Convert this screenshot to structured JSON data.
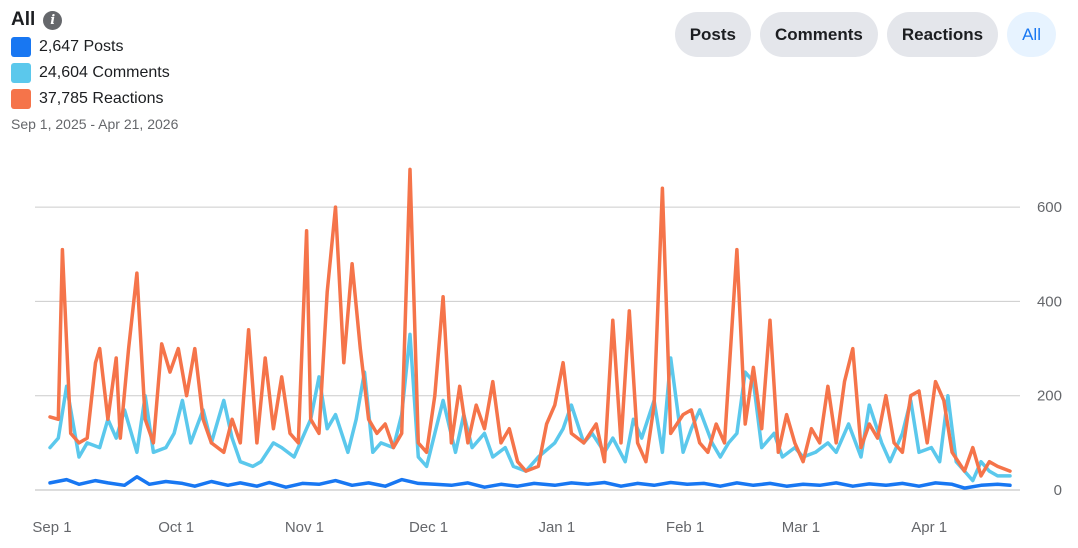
{
  "header": {
    "title": "All",
    "date_range": "Sep 1, 2025 - Apr 21, 2026"
  },
  "legend": [
    {
      "label": "2,647 Posts",
      "color": "#1877f2"
    },
    {
      "label": "24,604 Comments",
      "color": "#5bc8ec"
    },
    {
      "label": "37,785 Reactions",
      "color": "#f5744a"
    }
  ],
  "filters": [
    {
      "label": "Posts",
      "active": false
    },
    {
      "label": "Comments",
      "active": false
    },
    {
      "label": "Reactions",
      "active": false
    },
    {
      "label": "All",
      "active": true
    }
  ],
  "colors": {
    "posts": "#1877f2",
    "comments": "#5bc8ec",
    "reactions": "#f5744a",
    "grid": "#cccccc"
  },
  "chart_data": {
    "type": "line",
    "x_start": "2025-09-01",
    "x_end": "2026-04-21",
    "x_tick_labels": [
      "Sep 1",
      "Oct 1",
      "Nov 1",
      "Dec 1",
      "Jan 1",
      "Feb 1",
      "Mar 1",
      "Apr 1"
    ],
    "y_ticks": [
      0,
      200,
      400,
      600
    ],
    "ylim": [
      0,
      700
    ],
    "y_axis_side": "right",
    "grid": true,
    "series": [
      {
        "name": "Posts",
        "color": "#1877f2",
        "points": [
          [
            "2025-09-01",
            15
          ],
          [
            "2025-09-05",
            22
          ],
          [
            "2025-09-08",
            12
          ],
          [
            "2025-09-12",
            20
          ],
          [
            "2025-09-15",
            15
          ],
          [
            "2025-09-19",
            10
          ],
          [
            "2025-09-22",
            28
          ],
          [
            "2025-09-25",
            12
          ],
          [
            "2025-09-29",
            18
          ],
          [
            "2025-10-03",
            14
          ],
          [
            "2025-10-06",
            8
          ],
          [
            "2025-10-10",
            18
          ],
          [
            "2025-10-14",
            10
          ],
          [
            "2025-10-17",
            15
          ],
          [
            "2025-10-21",
            8
          ],
          [
            "2025-10-24",
            16
          ],
          [
            "2025-10-28",
            6
          ],
          [
            "2025-11-01",
            14
          ],
          [
            "2025-11-05",
            12
          ],
          [
            "2025-11-09",
            20
          ],
          [
            "2025-11-13",
            10
          ],
          [
            "2025-11-17",
            15
          ],
          [
            "2025-11-21",
            8
          ],
          [
            "2025-11-25",
            22
          ],
          [
            "2025-11-29",
            14
          ],
          [
            "2025-12-03",
            12
          ],
          [
            "2025-12-07",
            10
          ],
          [
            "2025-12-11",
            15
          ],
          [
            "2025-12-15",
            6
          ],
          [
            "2025-12-19",
            12
          ],
          [
            "2025-12-23",
            8
          ],
          [
            "2025-12-27",
            14
          ],
          [
            "2026-01-01",
            10
          ],
          [
            "2026-01-05",
            15
          ],
          [
            "2026-01-09",
            12
          ],
          [
            "2026-01-13",
            16
          ],
          [
            "2026-01-17",
            8
          ],
          [
            "2026-01-21",
            14
          ],
          [
            "2026-01-25",
            10
          ],
          [
            "2026-01-29",
            16
          ],
          [
            "2026-02-02",
            12
          ],
          [
            "2026-02-06",
            14
          ],
          [
            "2026-02-10",
            8
          ],
          [
            "2026-02-14",
            15
          ],
          [
            "2026-02-18",
            10
          ],
          [
            "2026-02-22",
            14
          ],
          [
            "2026-02-26",
            8
          ],
          [
            "2026-03-02",
            12
          ],
          [
            "2026-03-06",
            10
          ],
          [
            "2026-03-10",
            15
          ],
          [
            "2026-03-14",
            8
          ],
          [
            "2026-03-18",
            13
          ],
          [
            "2026-03-22",
            10
          ],
          [
            "2026-03-26",
            14
          ],
          [
            "2026-03-30",
            8
          ],
          [
            "2026-04-03",
            15
          ],
          [
            "2026-04-07",
            12
          ],
          [
            "2026-04-10",
            4
          ],
          [
            "2026-04-14",
            10
          ],
          [
            "2026-04-18",
            12
          ],
          [
            "2026-04-21",
            10
          ]
        ]
      },
      {
        "name": "Comments",
        "color": "#5bc8ec",
        "points": [
          [
            "2025-09-01",
            90
          ],
          [
            "2025-09-03",
            110
          ],
          [
            "2025-09-05",
            220
          ],
          [
            "2025-09-08",
            70
          ],
          [
            "2025-09-10",
            100
          ],
          [
            "2025-09-13",
            90
          ],
          [
            "2025-09-15",
            150
          ],
          [
            "2025-09-17",
            110
          ],
          [
            "2025-09-19",
            170
          ],
          [
            "2025-09-22",
            80
          ],
          [
            "2025-09-24",
            200
          ],
          [
            "2025-09-26",
            80
          ],
          [
            "2025-09-29",
            90
          ],
          [
            "2025-10-01",
            120
          ],
          [
            "2025-10-03",
            190
          ],
          [
            "2025-10-05",
            100
          ],
          [
            "2025-10-08",
            170
          ],
          [
            "2025-10-10",
            100
          ],
          [
            "2025-10-13",
            190
          ],
          [
            "2025-10-15",
            110
          ],
          [
            "2025-10-17",
            60
          ],
          [
            "2025-10-20",
            50
          ],
          [
            "2025-10-22",
            60
          ],
          [
            "2025-10-25",
            100
          ],
          [
            "2025-10-27",
            90
          ],
          [
            "2025-10-30",
            70
          ],
          [
            "2025-11-01",
            110
          ],
          [
            "2025-11-03",
            150
          ],
          [
            "2025-11-05",
            240
          ],
          [
            "2025-11-07",
            130
          ],
          [
            "2025-11-09",
            160
          ],
          [
            "2025-11-12",
            80
          ],
          [
            "2025-11-14",
            150
          ],
          [
            "2025-11-16",
            250
          ],
          [
            "2025-11-18",
            80
          ],
          [
            "2025-11-20",
            100
          ],
          [
            "2025-11-23",
            90
          ],
          [
            "2025-11-25",
            160
          ],
          [
            "2025-11-27",
            330
          ],
          [
            "2025-11-29",
            70
          ],
          [
            "2025-12-01",
            50
          ],
          [
            "2025-12-03",
            120
          ],
          [
            "2025-12-05",
            190
          ],
          [
            "2025-12-08",
            80
          ],
          [
            "2025-12-10",
            160
          ],
          [
            "2025-12-12",
            90
          ],
          [
            "2025-12-15",
            120
          ],
          [
            "2025-12-17",
            70
          ],
          [
            "2025-12-20",
            90
          ],
          [
            "2025-12-22",
            50
          ],
          [
            "2025-12-25",
            40
          ],
          [
            "2025-12-28",
            70
          ],
          [
            "2026-01-01",
            100
          ],
          [
            "2026-01-03",
            130
          ],
          [
            "2026-01-05",
            180
          ],
          [
            "2026-01-08",
            100
          ],
          [
            "2026-01-10",
            120
          ],
          [
            "2026-01-13",
            80
          ],
          [
            "2026-01-15",
            110
          ],
          [
            "2026-01-18",
            60
          ],
          [
            "2026-01-20",
            150
          ],
          [
            "2026-01-22",
            110
          ],
          [
            "2026-01-25",
            190
          ],
          [
            "2026-01-27",
            80
          ],
          [
            "2026-01-29",
            280
          ],
          [
            "2026-02-01",
            80
          ],
          [
            "2026-02-03",
            130
          ],
          [
            "2026-02-05",
            170
          ],
          [
            "2026-02-08",
            100
          ],
          [
            "2026-02-10",
            70
          ],
          [
            "2026-02-12",
            100
          ],
          [
            "2026-02-14",
            120
          ],
          [
            "2026-02-16",
            250
          ],
          [
            "2026-02-18",
            230
          ],
          [
            "2026-02-20",
            90
          ],
          [
            "2026-02-23",
            120
          ],
          [
            "2026-02-25",
            70
          ],
          [
            "2026-02-28",
            90
          ],
          [
            "2026-03-02",
            70
          ],
          [
            "2026-03-05",
            80
          ],
          [
            "2026-03-08",
            100
          ],
          [
            "2026-03-10",
            80
          ],
          [
            "2026-03-13",
            140
          ],
          [
            "2026-03-16",
            70
          ],
          [
            "2026-03-18",
            180
          ],
          [
            "2026-03-21",
            100
          ],
          [
            "2026-03-23",
            60
          ],
          [
            "2026-03-26",
            120
          ],
          [
            "2026-03-28",
            190
          ],
          [
            "2026-03-30",
            80
          ],
          [
            "2026-04-02",
            90
          ],
          [
            "2026-04-04",
            60
          ],
          [
            "2026-04-06",
            200
          ],
          [
            "2026-04-08",
            60
          ],
          [
            "2026-04-10",
            40
          ],
          [
            "2026-04-12",
            20
          ],
          [
            "2026-04-14",
            60
          ],
          [
            "2026-04-16",
            40
          ],
          [
            "2026-04-18",
            30
          ],
          [
            "2026-04-21",
            30
          ]
        ]
      },
      {
        "name": "Reactions",
        "color": "#f5744a",
        "points": [
          [
            "2025-09-01",
            155
          ],
          [
            "2025-09-03",
            150
          ],
          [
            "2025-09-04",
            510
          ],
          [
            "2025-09-06",
            120
          ],
          [
            "2025-09-08",
            100
          ],
          [
            "2025-09-10",
            110
          ],
          [
            "2025-09-12",
            270
          ],
          [
            "2025-09-13",
            300
          ],
          [
            "2025-09-15",
            150
          ],
          [
            "2025-09-17",
            280
          ],
          [
            "2025-09-18",
            110
          ],
          [
            "2025-09-20",
            300
          ],
          [
            "2025-09-22",
            460
          ],
          [
            "2025-09-24",
            150
          ],
          [
            "2025-09-26",
            100
          ],
          [
            "2025-09-28",
            310
          ],
          [
            "2025-09-30",
            250
          ],
          [
            "2025-10-02",
            300
          ],
          [
            "2025-10-04",
            200
          ],
          [
            "2025-10-06",
            300
          ],
          [
            "2025-10-08",
            150
          ],
          [
            "2025-10-10",
            100
          ],
          [
            "2025-10-13",
            80
          ],
          [
            "2025-10-15",
            150
          ],
          [
            "2025-10-17",
            100
          ],
          [
            "2025-10-19",
            340
          ],
          [
            "2025-10-21",
            100
          ],
          [
            "2025-10-23",
            280
          ],
          [
            "2025-10-25",
            130
          ],
          [
            "2025-10-27",
            240
          ],
          [
            "2025-10-29",
            120
          ],
          [
            "2025-10-31",
            100
          ],
          [
            "2025-11-02",
            550
          ],
          [
            "2025-11-03",
            150
          ],
          [
            "2025-11-05",
            120
          ],
          [
            "2025-11-07",
            420
          ],
          [
            "2025-11-09",
            600
          ],
          [
            "2025-11-11",
            270
          ],
          [
            "2025-11-13",
            480
          ],
          [
            "2025-11-15",
            300
          ],
          [
            "2025-11-17",
            150
          ],
          [
            "2025-11-19",
            120
          ],
          [
            "2025-11-21",
            140
          ],
          [
            "2025-11-23",
            90
          ],
          [
            "2025-11-25",
            120
          ],
          [
            "2025-11-27",
            680
          ],
          [
            "2025-11-29",
            100
          ],
          [
            "2025-12-01",
            80
          ],
          [
            "2025-12-03",
            200
          ],
          [
            "2025-12-05",
            410
          ],
          [
            "2025-12-07",
            100
          ],
          [
            "2025-12-09",
            220
          ],
          [
            "2025-12-11",
            100
          ],
          [
            "2025-12-13",
            180
          ],
          [
            "2025-12-15",
            130
          ],
          [
            "2025-12-17",
            230
          ],
          [
            "2025-12-19",
            100
          ],
          [
            "2025-12-21",
            130
          ],
          [
            "2025-12-23",
            60
          ],
          [
            "2025-12-25",
            40
          ],
          [
            "2025-12-28",
            50
          ],
          [
            "2025-12-30",
            140
          ],
          [
            "2026-01-01",
            180
          ],
          [
            "2026-01-03",
            270
          ],
          [
            "2026-01-05",
            120
          ],
          [
            "2026-01-08",
            100
          ],
          [
            "2026-01-11",
            140
          ],
          [
            "2026-01-13",
            60
          ],
          [
            "2026-01-15",
            360
          ],
          [
            "2026-01-17",
            100
          ],
          [
            "2026-01-19",
            380
          ],
          [
            "2026-01-21",
            100
          ],
          [
            "2026-01-23",
            60
          ],
          [
            "2026-01-25",
            180
          ],
          [
            "2026-01-27",
            640
          ],
          [
            "2026-01-29",
            120
          ],
          [
            "2026-02-01",
            160
          ],
          [
            "2026-02-03",
            170
          ],
          [
            "2026-02-05",
            100
          ],
          [
            "2026-02-07",
            80
          ],
          [
            "2026-02-09",
            140
          ],
          [
            "2026-02-11",
            100
          ],
          [
            "2026-02-14",
            510
          ],
          [
            "2026-02-16",
            140
          ],
          [
            "2026-02-18",
            260
          ],
          [
            "2026-02-20",
            130
          ],
          [
            "2026-02-22",
            360
          ],
          [
            "2026-02-24",
            80
          ],
          [
            "2026-02-26",
            160
          ],
          [
            "2026-02-28",
            100
          ],
          [
            "2026-03-02",
            60
          ],
          [
            "2026-03-04",
            130
          ],
          [
            "2026-03-06",
            100
          ],
          [
            "2026-03-08",
            220
          ],
          [
            "2026-03-10",
            100
          ],
          [
            "2026-03-12",
            230
          ],
          [
            "2026-03-14",
            300
          ],
          [
            "2026-03-16",
            90
          ],
          [
            "2026-03-18",
            140
          ],
          [
            "2026-03-20",
            110
          ],
          [
            "2026-03-22",
            200
          ],
          [
            "2026-03-24",
            100
          ],
          [
            "2026-03-26",
            80
          ],
          [
            "2026-03-28",
            200
          ],
          [
            "2026-03-30",
            210
          ],
          [
            "2026-04-01",
            100
          ],
          [
            "2026-04-03",
            230
          ],
          [
            "2026-04-05",
            190
          ],
          [
            "2026-04-07",
            80
          ],
          [
            "2026-04-10",
            40
          ],
          [
            "2026-04-12",
            90
          ],
          [
            "2026-04-14",
            30
          ],
          [
            "2026-04-16",
            60
          ],
          [
            "2026-04-18",
            50
          ],
          [
            "2026-04-21",
            40
          ]
        ]
      }
    ]
  }
}
